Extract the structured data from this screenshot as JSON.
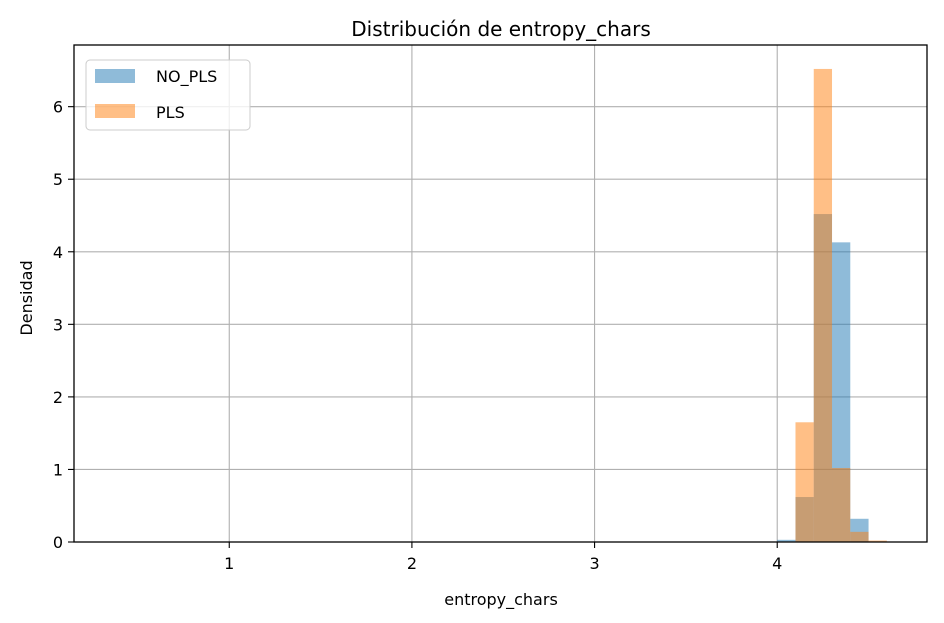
{
  "chart_data": {
    "type": "histogram",
    "title": "Distribución de entropy_chars",
    "xlabel": "entropy_chars",
    "ylabel": "Densidad",
    "xlim": [
      0.15,
      4.82
    ],
    "ylim": [
      0,
      6.85
    ],
    "xticks": [
      1,
      2,
      3,
      4
    ],
    "yticks": [
      0,
      1,
      2,
      3,
      4,
      5,
      6
    ],
    "grid": true,
    "legend_position": "top-left",
    "bin_edges": [
      4.0,
      4.1,
      4.2,
      4.3,
      4.4,
      4.5,
      4.6
    ],
    "series": [
      {
        "name": "NO_PLS",
        "color": "#1f77b4",
        "alpha": 0.5,
        "values": [
          0.03,
          0.62,
          4.52,
          4.13,
          0.32,
          0.0
        ]
      },
      {
        "name": "PLS",
        "color": "#ff7f0e",
        "alpha": 0.5,
        "values": [
          0.0,
          1.65,
          6.52,
          1.02,
          0.14,
          0.02
        ]
      }
    ]
  }
}
